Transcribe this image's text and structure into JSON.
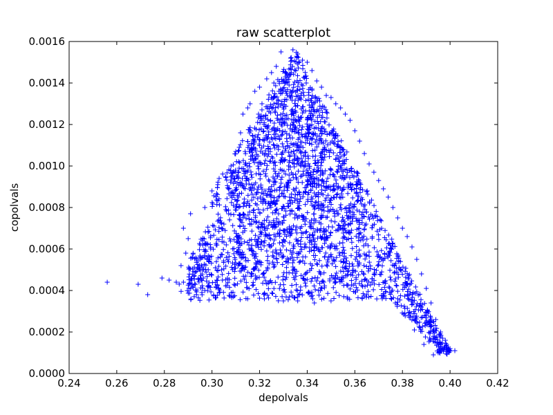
{
  "chart_data": {
    "type": "scatter",
    "title": "raw scatterplot",
    "xlabel": "depolvals",
    "ylabel": "copolvals",
    "xlim": [
      0.24,
      0.42
    ],
    "ylim": [
      0.0,
      0.0016
    ],
    "xticks": [
      "0.24",
      "0.26",
      "0.28",
      "0.30",
      "0.32",
      "0.34",
      "0.36",
      "0.38",
      "0.40",
      "0.42"
    ],
    "yticks": [
      "0.0000",
      "0.0002",
      "0.0004",
      "0.0006",
      "0.0008",
      "0.0010",
      "0.0012",
      "0.0014",
      "0.0016"
    ],
    "grid": false,
    "marker": "+",
    "color": "#0000ff",
    "series": [
      {
        "points": [
          [
            0.256,
            0.00044
          ],
          [
            0.269,
            0.00043
          ],
          [
            0.273,
            0.00038
          ],
          [
            0.279,
            0.00046
          ],
          [
            0.282,
            0.00045
          ],
          [
            0.285,
            0.00044
          ],
          [
            0.287,
            0.00052
          ],
          [
            0.288,
            0.0007
          ],
          [
            0.289,
            0.00058
          ],
          [
            0.29,
            0.00065
          ],
          [
            0.291,
            0.00077
          ],
          [
            0.293,
            0.00043
          ],
          [
            0.295,
            0.00062
          ],
          [
            0.297,
            0.0008
          ],
          [
            0.298,
            0.00055
          ],
          [
            0.3,
            0.00088
          ],
          [
            0.302,
            0.00045
          ],
          [
            0.303,
            0.00094
          ],
          [
            0.305,
            0.00072
          ],
          [
            0.306,
            0.00062
          ],
          [
            0.308,
            0.001
          ],
          [
            0.309,
            0.00081
          ],
          [
            0.31,
            0.00107
          ],
          [
            0.311,
            0.00094
          ],
          [
            0.312,
            0.00116
          ],
          [
            0.313,
            0.00125
          ],
          [
            0.315,
            0.00128
          ],
          [
            0.316,
            0.0013
          ],
          [
            0.318,
            0.00136
          ],
          [
            0.32,
            0.00138
          ],
          [
            0.321,
            0.0013
          ],
          [
            0.323,
            0.00142
          ],
          [
            0.325,
            0.00145
          ],
          [
            0.326,
            0.0014
          ],
          [
            0.327,
            0.00148
          ],
          [
            0.329,
            0.00155
          ],
          [
            0.331,
            0.00145
          ],
          [
            0.333,
            0.00152
          ],
          [
            0.334,
            0.00156
          ],
          [
            0.336,
            0.00154
          ],
          [
            0.338,
            0.00151
          ],
          [
            0.34,
            0.0015
          ],
          [
            0.342,
            0.00146
          ],
          [
            0.344,
            0.00141
          ],
          [
            0.346,
            0.00138
          ],
          [
            0.348,
            0.00134
          ],
          [
            0.35,
            0.00133
          ],
          [
            0.352,
            0.0013
          ],
          [
            0.354,
            0.00128
          ],
          [
            0.356,
            0.00125
          ],
          [
            0.358,
            0.00122
          ],
          [
            0.36,
            0.00117
          ],
          [
            0.362,
            0.00112
          ],
          [
            0.364,
            0.00106
          ],
          [
            0.366,
            0.00101
          ],
          [
            0.368,
            0.00097
          ],
          [
            0.37,
            0.00093
          ],
          [
            0.372,
            0.00089
          ],
          [
            0.374,
            0.00085
          ],
          [
            0.376,
            0.0008
          ],
          [
            0.378,
            0.00075
          ],
          [
            0.38,
            0.0007
          ],
          [
            0.382,
            0.00066
          ],
          [
            0.384,
            0.00061
          ],
          [
            0.386,
            0.00055
          ],
          [
            0.388,
            0.00048
          ],
          [
            0.39,
            0.00041
          ],
          [
            0.392,
            0.00034
          ],
          [
            0.394,
            0.00026
          ],
          [
            0.396,
            0.0002
          ],
          [
            0.398,
            0.00016
          ],
          [
            0.4,
            0.00012
          ],
          [
            0.402,
            0.00011
          ],
          [
            0.393,
            9e-05
          ],
          [
            0.395,
            0.0001
          ],
          [
            0.389,
            0.00014
          ],
          [
            0.385,
            0.00021
          ],
          [
            0.381,
            0.00029
          ],
          [
            0.377,
            0.00034
          ],
          [
            0.372,
            0.00037
          ],
          [
            0.365,
            0.00038
          ],
          [
            0.357,
            0.00036
          ],
          [
            0.35,
            0.00035
          ],
          [
            0.343,
            0.00034
          ],
          [
            0.336,
            0.00035
          ],
          [
            0.33,
            0.00035
          ],
          [
            0.322,
            0.00036
          ],
          [
            0.315,
            0.00036
          ],
          [
            0.309,
            0.00037
          ],
          [
            0.303,
            0.00039
          ],
          [
            0.297,
            0.0004
          ],
          [
            0.292,
            0.00042
          ],
          [
            0.288,
            0.00044
          ]
        ]
      }
    ]
  }
}
